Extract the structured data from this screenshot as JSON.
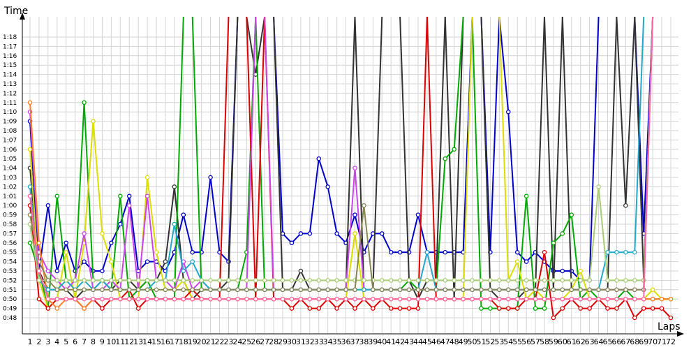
{
  "chart_data": {
    "type": "line",
    "title": "",
    "xlabel": "Laps",
    "ylabel": "Time",
    "x_ticks": [
      "1",
      "2",
      "3",
      "4",
      "5",
      "6",
      "7",
      "8",
      "9",
      "10",
      "11",
      "12",
      "13",
      "14",
      "15",
      "16",
      "17",
      "18",
      "19",
      "20",
      "21",
      "22",
      "23",
      "24",
      "25",
      "26",
      "27",
      "28",
      "29",
      "30",
      "31",
      "32",
      "33",
      "34",
      "35",
      "36",
      "37",
      "38",
      "39",
      "40",
      "41",
      "42",
      "43",
      "44",
      "45",
      "46",
      "47",
      "48",
      "49",
      "50",
      "51",
      "52",
      "53",
      "54",
      "55",
      "56",
      "57",
      "58",
      "59",
      "60",
      "61",
      "62",
      "63",
      "64",
      "65",
      "66",
      "67",
      "68",
      "69",
      "70",
      "71",
      "72"
    ],
    "y_ticks": [
      "0:48",
      "0:49",
      "0:50",
      "0:51",
      "0:52",
      "0:53",
      "0:54",
      "0:55",
      "0:56",
      "0:57",
      "0:58",
      "0:59",
      "1:00",
      "1:01",
      "1:02",
      "1:03",
      "1:04",
      "1:05",
      "1:06",
      "1:07",
      "1:08",
      "1:09",
      "1:10",
      "1:11",
      "1:12",
      "1:13",
      "1:14",
      "1:15",
      "1:16",
      "1:17",
      "1:18"
    ],
    "xlim": [
      1,
      72
    ],
    "ylim_seconds": [
      47,
      79.3
    ],
    "grid": true,
    "legend": "none",
    "series": [
      {
        "color": "#0000cc",
        "values": [
          69,
          53,
          60,
          53,
          56,
          53,
          54,
          53,
          53,
          56,
          58,
          61,
          53,
          54,
          54,
          53,
          55,
          59,
          55,
          55,
          63,
          55,
          54,
          null,
          null,
          null,
          null,
          null,
          57,
          56,
          57,
          57,
          65,
          62,
          57,
          56,
          59,
          55,
          57,
          57,
          55,
          55,
          55,
          59,
          55,
          55,
          55,
          55,
          55,
          null,
          null,
          55,
          null,
          70,
          55,
          54,
          55,
          54,
          53,
          53,
          53,
          52,
          52,
          null,
          null,
          null,
          null,
          null,
          57,
          null,
          null,
          null
        ]
      },
      {
        "color": "#333333",
        "values": [
          64,
          53,
          51,
          51,
          51,
          50,
          51,
          51,
          52,
          51,
          52,
          52,
          51,
          52,
          52,
          54,
          62,
          52,
          50,
          51,
          51,
          51,
          52,
          null,
          null,
          74,
          null,
          null,
          51,
          51,
          53,
          51,
          51,
          51,
          51,
          51,
          null,
          51,
          51,
          null,
          null,
          null,
          52,
          50,
          52,
          52,
          null,
          50,
          null,
          null,
          null,
          51,
          50,
          50,
          50,
          51,
          51,
          null,
          51,
          null,
          51,
          51,
          51,
          51,
          51,
          null,
          60,
          null,
          52,
          null,
          null,
          null
        ]
      },
      {
        "color": "#00aa00",
        "values": [
          56,
          53,
          49,
          61,
          52,
          52,
          71,
          52,
          52,
          51,
          61,
          50,
          51,
          52,
          50,
          50,
          50,
          null,
          null,
          51,
          51,
          51,
          51,
          51,
          55,
          null,
          51,
          51,
          51,
          51,
          51,
          51,
          51,
          51,
          51,
          51,
          51,
          51,
          51,
          51,
          51,
          51,
          52,
          51,
          51,
          51,
          65,
          66,
          null,
          null,
          49,
          49,
          49,
          49,
          49,
          61,
          49,
          49,
          56,
          57,
          59,
          50,
          51,
          50,
          50,
          50,
          51,
          50,
          50,
          50,
          50,
          50
        ]
      },
      {
        "color": "#dddd00",
        "values": [
          66,
          52,
          49,
          50,
          55,
          50,
          56,
          69,
          57,
          54,
          50,
          50,
          50,
          63,
          55,
          51,
          51,
          52,
          50,
          50,
          50,
          50,
          50,
          50,
          50,
          50,
          50,
          50,
          50,
          50,
          50,
          50,
          50,
          50,
          50,
          50,
          57,
          50,
          50,
          50,
          50,
          50,
          50,
          50,
          50,
          50,
          50,
          50,
          50,
          null,
          null,
          null,
          null,
          52,
          54,
          50,
          51,
          50,
          50,
          50,
          51,
          53,
          50,
          50,
          50,
          50,
          50,
          50,
          50,
          51,
          50,
          50
        ]
      },
      {
        "color": "#dd0000",
        "values": [
          60,
          50,
          49,
          50,
          50,
          50,
          49,
          50,
          49,
          50,
          50,
          51,
          49,
          50,
          50,
          50,
          50,
          50,
          51,
          50,
          50,
          50,
          null,
          null,
          null,
          50,
          null,
          50,
          50,
          49,
          50,
          49,
          49,
          50,
          49,
          50,
          49,
          50,
          49,
          50,
          49,
          49,
          49,
          49,
          null,
          50,
          50,
          50,
          50,
          50,
          50,
          50,
          49,
          49,
          49,
          50,
          50,
          55,
          48,
          49,
          50,
          49,
          49,
          50,
          49,
          49,
          50,
          48,
          49,
          49,
          49,
          48
        ]
      },
      {
        "color": "#cc44ee",
        "values": [
          70,
          55,
          53,
          52,
          51,
          52,
          57,
          51,
          51,
          52,
          51,
          60,
          51,
          61,
          52,
          52,
          51,
          54,
          51,
          52,
          51,
          51,
          51,
          51,
          51,
          null,
          null,
          51,
          51,
          51,
          51,
          51,
          51,
          51,
          51,
          51,
          64,
          51,
          51,
          51,
          51,
          51,
          51,
          51,
          51,
          51,
          51,
          51,
          51,
          51,
          51,
          51,
          51,
          51,
          51,
          51,
          51,
          51,
          51,
          51,
          51,
          51,
          51,
          51,
          51,
          51,
          51,
          51,
          51,
          null,
          null,
          null
        ]
      },
      {
        "color": "#ff7f27",
        "values": [
          71,
          56,
          50,
          49,
          50,
          50,
          49,
          50,
          50,
          50,
          50,
          50,
          50,
          50,
          50,
          50,
          50,
          50,
          50,
          50,
          50,
          50,
          50,
          50,
          50,
          50,
          50,
          50,
          50,
          50,
          50,
          50,
          50,
          50,
          50,
          50,
          50,
          50,
          50,
          50,
          50,
          50,
          50,
          50,
          50,
          50,
          50,
          50,
          50,
          50,
          50,
          50,
          50,
          50,
          50,
          50,
          50,
          50,
          50,
          50,
          50,
          50,
          50,
          50,
          50,
          50,
          50,
          50,
          50,
          50,
          50,
          50
        ]
      },
      {
        "color": "#22aacc",
        "values": [
          62,
          52,
          51,
          51,
          52,
          51,
          52,
          51,
          52,
          51,
          51,
          51,
          51,
          51,
          52,
          52,
          58,
          53,
          54,
          52,
          51,
          51,
          51,
          51,
          51,
          51,
          51,
          51,
          51,
          51,
          51,
          51,
          51,
          51,
          51,
          51,
          51,
          51,
          51,
          51,
          51,
          51,
          51,
          51,
          55,
          51,
          51,
          51,
          51,
          51,
          51,
          51,
          51,
          51,
          51,
          51,
          51,
          51,
          51,
          51,
          51,
          51,
          51,
          51,
          55,
          55,
          55,
          55,
          null,
          null,
          null,
          null
        ]
      },
      {
        "color": "#aacc77",
        "values": [
          58,
          52,
          52,
          52,
          52,
          52,
          52,
          52,
          52,
          52,
          52,
          52,
          52,
          52,
          52,
          52,
          52,
          52,
          52,
          52,
          52,
          52,
          52,
          52,
          52,
          52,
          52,
          52,
          52,
          52,
          52,
          52,
          52,
          52,
          52,
          52,
          52,
          52,
          52,
          52,
          52,
          52,
          52,
          52,
          52,
          52,
          52,
          52,
          52,
          52,
          52,
          52,
          52,
          52,
          52,
          52,
          52,
          52,
          52,
          52,
          52,
          52,
          52,
          62,
          52,
          52,
          52,
          52,
          52,
          null,
          null,
          null
        ]
      },
      {
        "color": "#888855",
        "values": [
          59,
          54,
          52,
          51,
          51,
          51,
          51,
          51,
          51,
          51,
          51,
          51,
          51,
          51,
          51,
          51,
          51,
          51,
          51,
          51,
          51,
          51,
          51,
          51,
          51,
          51,
          51,
          51,
          51,
          51,
          51,
          51,
          51,
          51,
          51,
          51,
          51,
          60,
          51,
          51,
          51,
          51,
          51,
          51,
          51,
          51,
          51,
          51,
          51,
          51,
          51,
          51,
          51,
          51,
          51,
          51,
          51,
          51,
          51,
          51,
          51,
          51,
          51,
          51,
          51,
          51,
          51,
          51,
          51,
          null,
          null,
          null
        ]
      },
      {
        "color": "#ff66aa",
        "values": [
          61,
          53,
          50,
          50,
          50,
          50,
          50,
          50,
          50,
          50,
          50,
          50,
          50,
          50,
          50,
          50,
          50,
          50,
          50,
          50,
          50,
          50,
          50,
          50,
          50,
          50,
          50,
          50,
          50,
          50,
          50,
          50,
          50,
          50,
          50,
          50,
          50,
          50,
          50,
          50,
          50,
          50,
          50,
          50,
          50,
          50,
          50,
          50,
          50,
          50,
          50,
          50,
          50,
          50,
          50,
          50,
          50,
          50,
          50,
          50,
          50,
          50,
          50,
          50,
          50,
          50,
          50,
          50,
          50,
          null,
          null,
          null
        ]
      }
    ]
  }
}
